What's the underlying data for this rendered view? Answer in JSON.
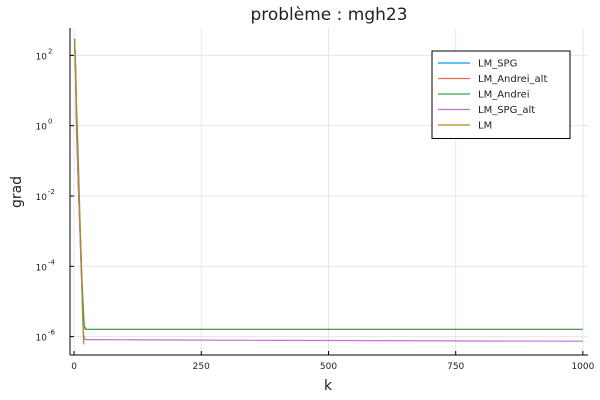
{
  "chart_data": {
    "type": "line",
    "title": "problème : mgh23",
    "xlabel": "k",
    "ylabel": "grad",
    "y_scale": "log",
    "xlim": [
      -8,
      1010
    ],
    "ylim": [
      3e-07,
      600.0
    ],
    "grid": true,
    "legend_position": "top-right",
    "x_ticks": [
      0,
      250,
      500,
      750,
      1000
    ],
    "x_tick_labels": [
      "0",
      "250",
      "500",
      "750",
      "1000"
    ],
    "y_ticks": [
      {
        "value": 100,
        "base": "10",
        "exp": "2"
      },
      {
        "value": 1,
        "base": "10",
        "exp": "0"
      },
      {
        "value": 0.01,
        "base": "10",
        "exp": "-2"
      },
      {
        "value": 0.0001,
        "base": "10",
        "exp": "-4"
      },
      {
        "value": 1e-06,
        "base": "10",
        "exp": "-6"
      }
    ],
    "series": [
      {
        "name": "LM_SPG",
        "color": "#009af9",
        "x": [
          1,
          3,
          5,
          7,
          10,
          14,
          18,
          22,
          50,
          200,
          400,
          600,
          800,
          1000
        ],
        "y": [
          300,
          40,
          1.5,
          0.1,
          0.005,
          0.0001,
          2.5e-06,
          1.6e-06,
          1.6e-06,
          1.6e-06,
          1.6e-06,
          1.6e-06,
          1.6e-06,
          1.6e-06
        ]
      },
      {
        "name": "LM_Andrei_alt",
        "color": "#e26f46",
        "x": [
          1,
          3,
          5,
          7,
          10,
          14,
          18,
          22,
          50,
          200,
          400,
          600,
          800,
          1000
        ],
        "y": [
          300,
          35,
          1.2,
          0.08,
          0.004,
          8e-05,
          2.4e-06,
          1.6e-06,
          1.6e-06,
          1.6e-06,
          1.6e-06,
          1.6e-06,
          1.6e-06,
          1.6e-06
        ]
      },
      {
        "name": "LM_Andrei",
        "color": "#3da44d",
        "x": [
          1,
          3,
          5,
          7,
          9,
          12,
          16,
          20,
          24,
          50,
          200,
          400,
          600,
          800,
          1000
        ],
        "y": [
          300,
          20,
          0.5,
          0.1,
          0.01,
          0.001,
          3e-05,
          2e-06,
          1.6e-06,
          1.6e-06,
          1.6e-06,
          1.6e-06,
          1.6e-06,
          1.6e-06,
          1.6e-06
        ]
      },
      {
        "name": "LM_SPG_alt",
        "color": "#c271d2",
        "x": [
          1,
          3,
          5,
          7,
          10,
          14,
          18,
          22,
          50,
          200,
          400,
          600,
          800,
          1000
        ],
        "y": [
          300,
          40,
          1.5,
          0.1,
          0.005,
          0.0001,
          1.2e-06,
          8.2e-07,
          8.2e-07,
          8e-07,
          7.8e-07,
          7.7e-07,
          7.5e-07,
          7.4e-07
        ]
      },
      {
        "name": "LM",
        "color": "#ac8d18",
        "x": [
          1,
          3,
          5,
          7,
          9,
          11,
          13,
          15,
          17,
          19
        ],
        "y": [
          300,
          60,
          4,
          0.5,
          0.05,
          0.005,
          0.0005,
          5e-05,
          4e-06,
          6e-07
        ]
      }
    ]
  }
}
